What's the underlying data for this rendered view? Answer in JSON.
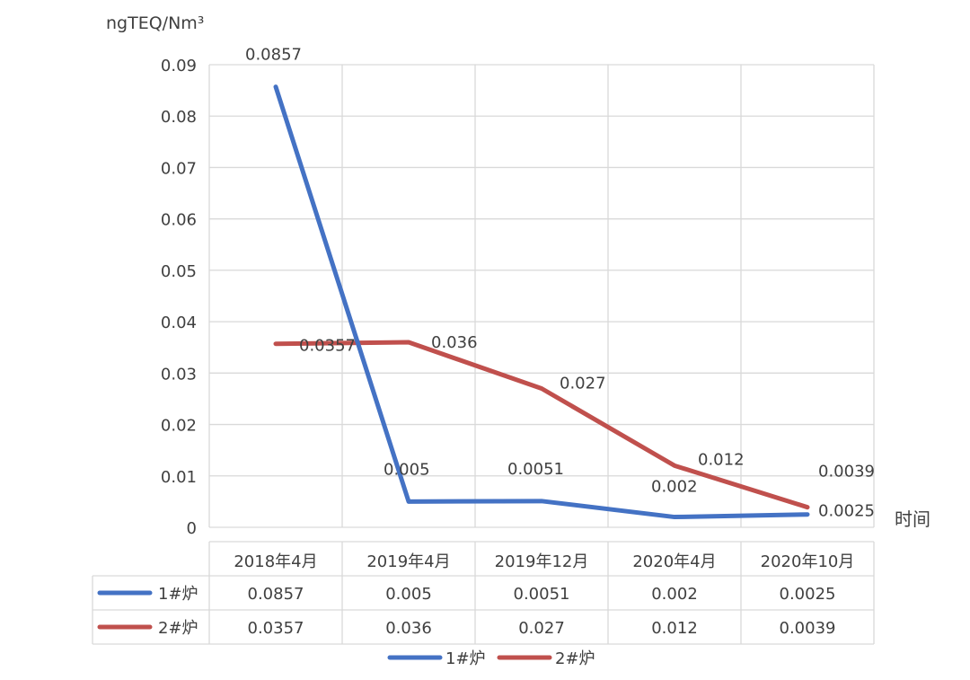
{
  "chart_data": {
    "type": "line",
    "title": "",
    "ylabel": "ngTEQ/Nm³",
    "xlabel": "时间",
    "ylim": [
      0,
      0.09
    ],
    "y_ticks": [
      "0",
      "0.01",
      "0.02",
      "0.03",
      "0.04",
      "0.05",
      "0.06",
      "0.07",
      "0.08",
      "0.09"
    ],
    "grid": true,
    "legend_position": "bottom",
    "categories": [
      "2018年4月",
      "2019年4月",
      "2019年12月",
      "2020年4月",
      "2020年10月"
    ],
    "series": [
      {
        "name": "1#炉",
        "color": "#4472C4",
        "values": [
          0.0857,
          0.005,
          0.0051,
          0.002,
          0.0025
        ],
        "labels": [
          "0.0857",
          "0.005",
          "0.0051",
          "0.002",
          "0.0025"
        ]
      },
      {
        "name": "2#炉",
        "color": "#C0504D",
        "values": [
          0.0357,
          0.036,
          0.027,
          0.012,
          0.0039
        ],
        "labels": [
          "0.0357",
          "0.036",
          "0.027",
          "0.012",
          "0.0039"
        ]
      }
    ],
    "data_table": true
  }
}
